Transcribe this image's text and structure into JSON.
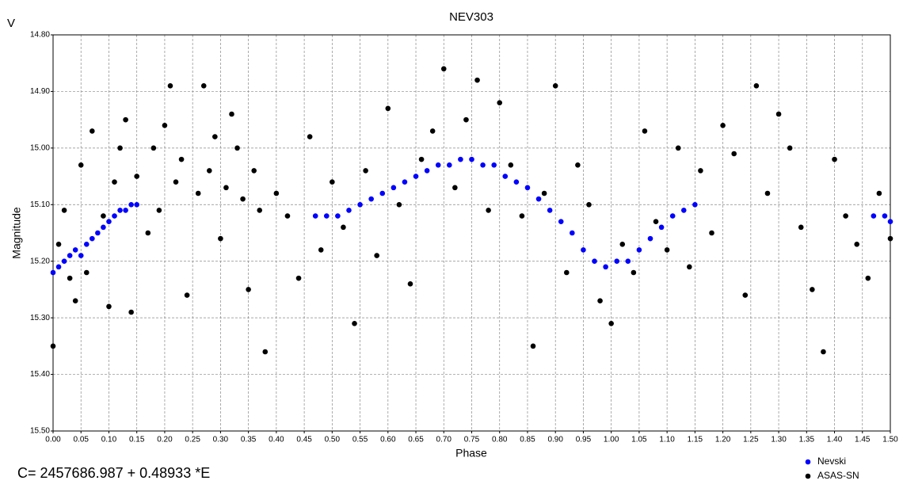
{
  "chart_data": {
    "type": "scatter",
    "title": "NEV303",
    "y_unit_label": "V",
    "ylabel": "Magnitude",
    "xlabel": "Phase",
    "annotation": "C= 2457686.987 + 0.48933 *E",
    "xlim": [
      0,
      1.5
    ],
    "ylim": [
      15.5,
      14.8
    ],
    "xticks": [
      {
        "value": 0,
        "label": "0.00"
      },
      {
        "value": 0.05,
        "label": "0.05"
      },
      {
        "value": 0.1,
        "label": "0.10"
      },
      {
        "value": 0.15,
        "label": "0.15"
      },
      {
        "value": 0.2,
        "label": "0.20"
      },
      {
        "value": 0.25,
        "label": "0.25"
      },
      {
        "value": 0.3,
        "label": "0.30"
      },
      {
        "value": 0.35,
        "label": "0.35"
      },
      {
        "value": 0.4,
        "label": "0.40"
      },
      {
        "value": 0.45,
        "label": "0.45"
      },
      {
        "value": 0.5,
        "label": "0.50"
      },
      {
        "value": 0.55,
        "label": "0.55"
      },
      {
        "value": 0.6,
        "label": "0.60"
      },
      {
        "value": 0.65,
        "label": "0.65"
      },
      {
        "value": 0.7,
        "label": "0.70"
      },
      {
        "value": 0.75,
        "label": "0.75"
      },
      {
        "value": 0.8,
        "label": "0.80"
      },
      {
        "value": 0.85,
        "label": "0.85"
      },
      {
        "value": 0.9,
        "label": "0.90"
      },
      {
        "value": 0.95,
        "label": "0.95"
      },
      {
        "value": 1,
        "label": "1.00"
      },
      {
        "value": 1.05,
        "label": "1.05"
      },
      {
        "value": 1.1,
        "label": "1.10"
      },
      {
        "value": 1.15,
        "label": "1.15"
      },
      {
        "value": 1.2,
        "label": "1.20"
      },
      {
        "value": 1.25,
        "label": "1.25"
      },
      {
        "value": 1.3,
        "label": "1.30"
      },
      {
        "value": 1.35,
        "label": "1.35"
      },
      {
        "value": 1.4,
        "label": "1.40"
      },
      {
        "value": 1.45,
        "label": "1.45"
      },
      {
        "value": 1.5,
        "label": "1.50"
      }
    ],
    "yticks": [
      {
        "value": 14.8,
        "label": "14.80"
      },
      {
        "value": 14.9,
        "label": "14.90"
      },
      {
        "value": 15.0,
        "label": "15.00"
      },
      {
        "value": 15.1,
        "label": "15.10"
      },
      {
        "value": 15.2,
        "label": "15.20"
      },
      {
        "value": 15.3,
        "label": "15.30"
      },
      {
        "value": 15.4,
        "label": "15.40"
      },
      {
        "value": 15.5,
        "label": "15.50"
      }
    ],
    "grid": true,
    "legend": "bottom-right",
    "series": [
      {
        "name": "Nevski",
        "color": "#0000ff",
        "x": [
          0.0,
          0.01,
          0.02,
          0.03,
          0.04,
          0.05,
          0.06,
          0.07,
          0.08,
          0.09,
          0.1,
          0.11,
          0.12,
          0.13,
          0.14,
          0.15,
          0.47,
          0.49,
          0.51,
          0.53,
          0.55,
          0.57,
          0.59,
          0.61,
          0.63,
          0.65,
          0.67,
          0.69,
          0.71,
          0.73,
          0.75,
          0.77,
          0.79,
          0.81,
          0.83,
          0.85,
          0.87,
          0.89,
          0.91,
          0.93,
          0.95,
          0.97,
          0.99,
          1.01,
          1.03,
          1.05,
          1.07,
          1.09,
          1.11,
          1.13,
          1.15,
          1.47,
          1.49,
          1.5
        ],
        "values": [
          15.22,
          15.21,
          15.2,
          15.19,
          15.18,
          15.19,
          15.17,
          15.16,
          15.15,
          15.14,
          15.13,
          15.12,
          15.11,
          15.11,
          15.1,
          15.1,
          15.12,
          15.12,
          15.12,
          15.11,
          15.1,
          15.09,
          15.08,
          15.07,
          15.06,
          15.05,
          15.04,
          15.03,
          15.03,
          15.02,
          15.02,
          15.03,
          15.03,
          15.05,
          15.06,
          15.07,
          15.09,
          15.11,
          15.13,
          15.15,
          15.18,
          15.2,
          15.21,
          15.2,
          15.2,
          15.18,
          15.16,
          15.14,
          15.12,
          15.11,
          15.1,
          15.12,
          15.12,
          15.13
        ]
      },
      {
        "name": "ASAS-SN",
        "color": "#000000",
        "x": [
          0.0,
          0.01,
          0.02,
          0.03,
          0.04,
          0.05,
          0.06,
          0.07,
          0.09,
          0.1,
          0.11,
          0.12,
          0.13,
          0.14,
          0.15,
          0.17,
          0.18,
          0.19,
          0.2,
          0.21,
          0.22,
          0.23,
          0.24,
          0.26,
          0.27,
          0.28,
          0.29,
          0.3,
          0.31,
          0.32,
          0.33,
          0.34,
          0.35,
          0.36,
          0.37,
          0.38,
          0.4,
          0.42,
          0.44,
          0.46,
          0.48,
          0.5,
          0.52,
          0.54,
          0.56,
          0.58,
          0.6,
          0.62,
          0.64,
          0.66,
          0.68,
          0.7,
          0.72,
          0.74,
          0.76,
          0.78,
          0.8,
          0.82,
          0.84,
          0.86,
          0.88,
          0.9,
          0.92,
          0.94,
          0.96,
          0.98,
          1.0,
          1.02,
          1.04,
          1.06,
          1.08,
          1.1,
          1.12,
          1.14,
          1.16,
          1.18,
          1.2,
          1.22,
          1.24,
          1.26,
          1.28,
          1.3,
          1.32,
          1.34,
          1.36,
          1.38,
          1.4,
          1.42,
          1.44,
          1.46,
          1.48,
          1.5
        ],
        "values": [
          15.35,
          15.17,
          15.11,
          15.23,
          15.27,
          15.03,
          15.22,
          14.97,
          15.12,
          15.28,
          15.06,
          15.0,
          14.95,
          15.29,
          15.05,
          15.15,
          15.0,
          15.11,
          14.96,
          14.89,
          15.06,
          15.02,
          15.26,
          15.08,
          14.89,
          15.04,
          14.98,
          15.16,
          15.07,
          14.94,
          15.0,
          15.09,
          15.25,
          15.04,
          15.11,
          15.36,
          15.08,
          15.12,
          15.23,
          14.98,
          15.18,
          15.06,
          15.14,
          15.31,
          15.04,
          15.19,
          14.93,
          15.1,
          15.24,
          15.02,
          14.97,
          14.86,
          15.07,
          14.95,
          14.88,
          15.11,
          14.92,
          15.03,
          15.12,
          15.35,
          15.08,
          14.89,
          15.22,
          15.03,
          15.1,
          15.27,
          15.31,
          15.17,
          15.22,
          14.97,
          15.13,
          15.18,
          15.0,
          15.21,
          15.04,
          15.15,
          14.96,
          15.01,
          15.26,
          14.89,
          15.08,
          14.94,
          15.0,
          15.14,
          15.25,
          15.36,
          15.02,
          15.12,
          15.17,
          15.23,
          15.08,
          15.16
        ]
      }
    ]
  }
}
